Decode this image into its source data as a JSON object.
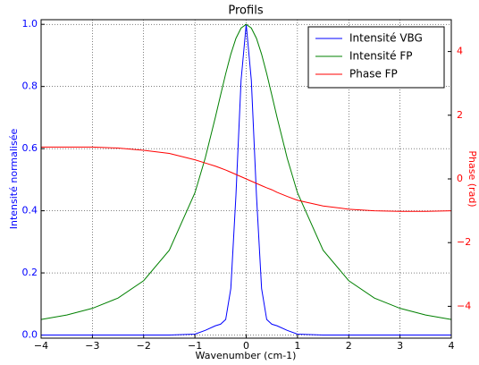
{
  "chart_data": {
    "type": "line",
    "title": "Profils",
    "x_label": "Wavenumber (cm-1)",
    "y_label": "Intensité normalisée",
    "y2_label": "Phase (rad)",
    "x": [
      -4,
      -3.5,
      -3,
      -2.5,
      -2,
      -1.5,
      -1,
      -0.8,
      -0.6,
      -0.5,
      -0.4,
      -0.3,
      -0.2,
      -0.1,
      0,
      0.1,
      0.2,
      0.3,
      0.4,
      0.5,
      0.6,
      0.8,
      1,
      1.5,
      2,
      2.5,
      3,
      3.5,
      4
    ],
    "series": [
      {
        "name": "Intensité VBG",
        "color": "#0000ff",
        "values": [
          0,
          0,
          0,
          0,
          0,
          0,
          0.003,
          0.015,
          0.03,
          0.035,
          0.05,
          0.15,
          0.45,
          0.82,
          1,
          0.82,
          0.45,
          0.15,
          0.05,
          0.035,
          0.03,
          0.015,
          0.003,
          0,
          0,
          0,
          0,
          0,
          0
        ]
      },
      {
        "name": "Intensité FP",
        "color": "#008000",
        "values": [
          0.05,
          0.0646,
          0.086,
          0.119,
          0.175,
          0.273,
          0.458,
          0.569,
          0.702,
          0.772,
          0.841,
          0.904,
          0.955,
          0.988,
          1,
          0.988,
          0.955,
          0.904,
          0.841,
          0.772,
          0.702,
          0.569,
          0.458,
          0.273,
          0.175,
          0.119,
          0.086,
          0.0646,
          0.05
        ]
      },
      {
        "name": "Phase FP",
        "color": "#ff0000",
        "axis": "y2",
        "values": [
          1.0,
          1.0,
          1.0,
          0.97,
          0.9,
          0.8,
          0.6,
          0.5,
          0.4,
          0.34,
          0.28,
          0.21,
          0.14,
          0.07,
          0,
          -0.07,
          -0.14,
          -0.21,
          -0.28,
          -0.34,
          -0.42,
          -0.55,
          -0.67,
          -0.85,
          -0.95,
          -1.0,
          -1.02,
          -1.02,
          -1.0
        ]
      }
    ],
    "xlim": [
      -4,
      4
    ],
    "xticks": [
      {
        "value": -4,
        "label": "−4"
      },
      {
        "value": -3,
        "label": "−3"
      },
      {
        "value": -2,
        "label": "−2"
      },
      {
        "value": -1,
        "label": "−1"
      },
      0,
      1,
      2,
      3,
      4
    ],
    "ylim": [
      -0.01,
      1.015
    ],
    "yticks": [
      {
        "value": 0,
        "label": "0.0"
      },
      {
        "value": 0.2,
        "label": "0.2"
      },
      {
        "value": 0.4,
        "label": "0.4"
      },
      {
        "value": 0.6,
        "label": "0.6"
      },
      {
        "value": 0.8,
        "label": "0.8"
      },
      {
        "value": 1,
        "label": "1.0"
      }
    ],
    "y2lim": [
      -5,
      5
    ],
    "y2ticks": [
      {
        "value": -4,
        "label": "−4"
      },
      {
        "value": -2,
        "label": "−2"
      },
      0,
      2,
      4
    ],
    "grid": true,
    "legend": "upper right",
    "y_color": "#0000ff",
    "y2_color": "#ff0000"
  }
}
